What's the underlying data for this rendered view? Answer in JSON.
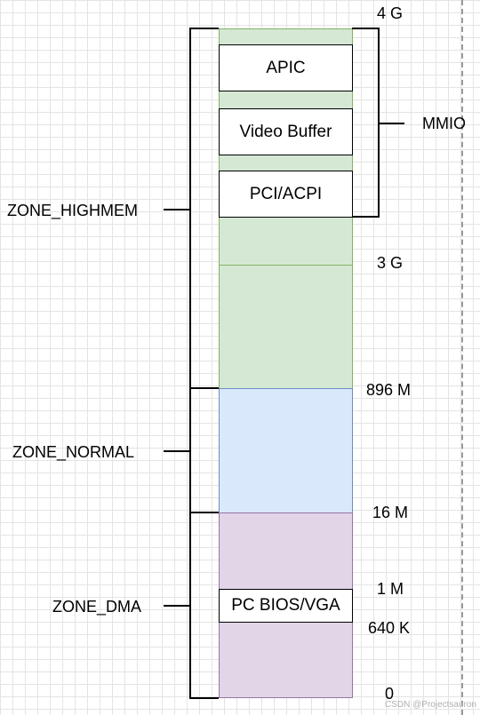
{
  "memory_blocks": {
    "apic": "APIC",
    "video_buffer": "Video Buffer",
    "pci_acpi": "PCI/ACPI",
    "pc_bios_vga": "PC BIOS/VGA"
  },
  "address_labels": {
    "a4g": "4 G",
    "a3g": "3 G",
    "a896m": "896 M",
    "a16m": "16 M",
    "a1m": "1 M",
    "a640k": "640 K",
    "a0": "0"
  },
  "zones": {
    "highmem": "ZONE_HIGHMEM",
    "normal": "ZONE_NORMAL",
    "dma": "ZONE_DMA",
    "mmio": "MMIO"
  },
  "colors": {
    "highmem_fill": "#d5e8d4",
    "normal_fill": "#dae8fc",
    "dma_fill": "#e1d5e7"
  },
  "watermark": "CSDN @Projectsauron"
}
